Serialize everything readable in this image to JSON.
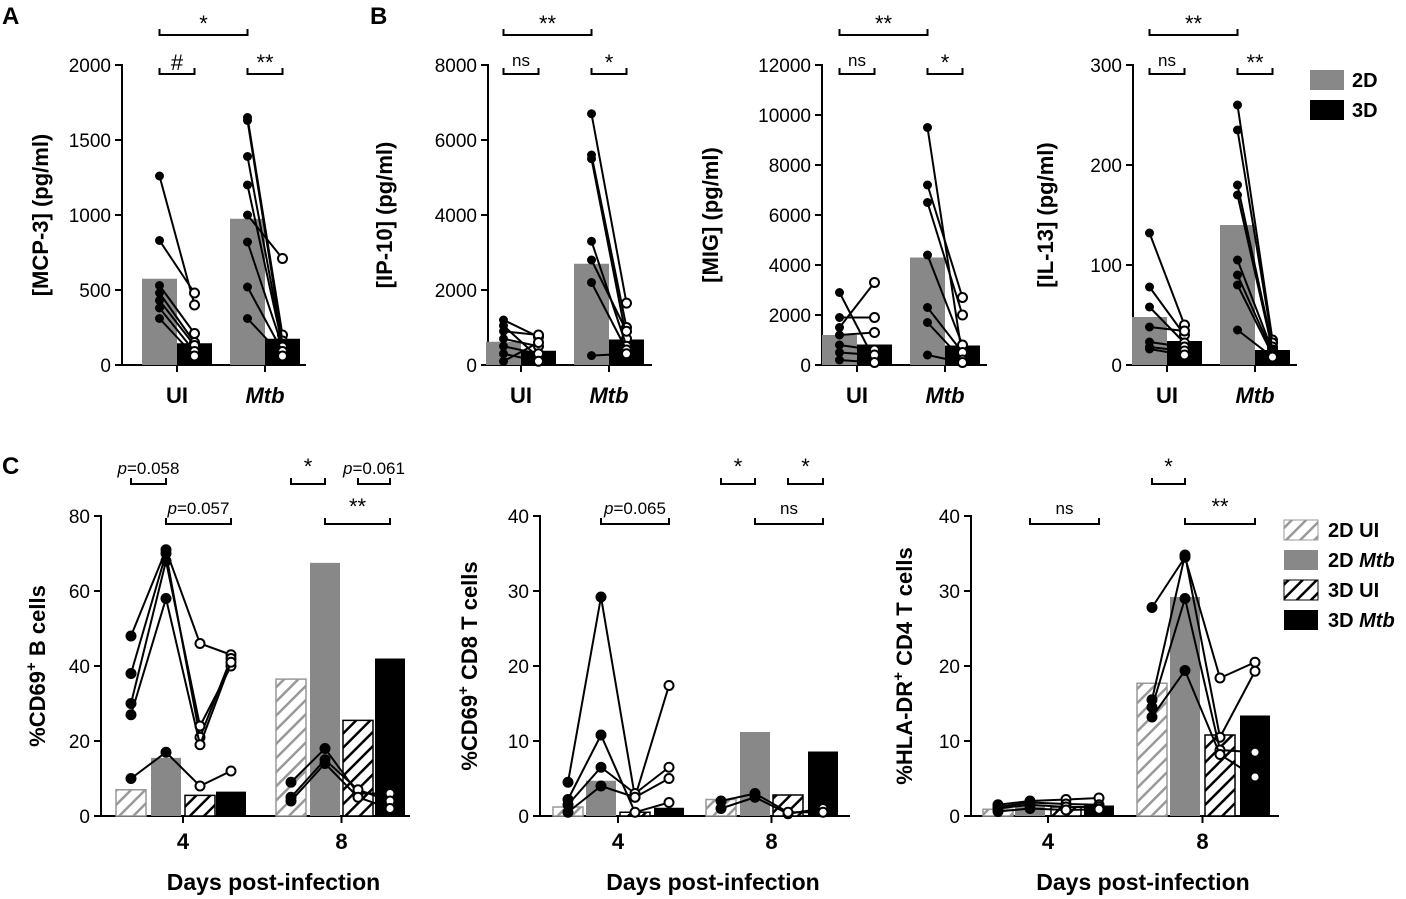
{
  "panel_labels": {
    "a": "A",
    "b": "B",
    "c": "C"
  },
  "colors": {
    "gray": "#888888",
    "black": "#000000",
    "line": "#000000"
  },
  "legend_top": [
    {
      "label": "2D",
      "color": "#888888"
    },
    {
      "label": "3D",
      "color": "#000000"
    }
  ],
  "legend_bottom": [
    {
      "label": "2D UI",
      "style": "hatch-gray"
    },
    {
      "label": "2D ",
      "label_italic": "Mtb",
      "style": "gray"
    },
    {
      "label": "3D UI",
      "style": "hatch-black"
    },
    {
      "label": "3D ",
      "label_italic": "Mtb",
      "style": "black"
    }
  ],
  "chart_data": [
    {
      "id": "mcp3",
      "type": "bar",
      "panel": "A",
      "ylabel": "[MCP-3] (pg/ml)",
      "ylim": [
        0,
        2000
      ],
      "yticks": [
        0,
        500,
        1000,
        1500,
        2000
      ],
      "categories": [
        "UI",
        "Mtb"
      ],
      "categories_italic": [
        false,
        true
      ],
      "series": [
        {
          "name": "2D",
          "values": [
            575,
            975
          ]
        },
        {
          "name": "3D",
          "values": [
            145,
            175
          ]
        }
      ],
      "paired_points": [
        [
          [
            1260,
            400
          ],
          [
            830,
            480
          ],
          [
            530,
            210
          ],
          [
            480,
            150
          ],
          [
            430,
            130
          ],
          [
            380,
            90
          ],
          [
            310,
            60
          ]
        ],
        [
          [
            1650,
            200
          ],
          [
            1630,
            160
          ],
          [
            1390,
            140
          ],
          [
            1200,
            130
          ],
          [
            1000,
            710
          ],
          [
            820,
            120
          ],
          [
            520,
            90
          ],
          [
            310,
            60
          ]
        ]
      ],
      "brackets": [
        {
          "from": [
            0,
            0
          ],
          "to": [
            1,
            0
          ],
          "level": 0,
          "label": "*"
        },
        {
          "from": [
            0,
            0
          ],
          "to": [
            0,
            1
          ],
          "level": 1,
          "label": "#"
        },
        {
          "from": [
            1,
            0
          ],
          "to": [
            1,
            1
          ],
          "level": 1,
          "label": "**"
        }
      ]
    },
    {
      "id": "ip10",
      "type": "bar",
      "panel": "B",
      "ylabel": "[IP-10] (pg/ml)",
      "ylim": [
        0,
        8000
      ],
      "yticks": [
        0,
        2000,
        4000,
        6000,
        8000
      ],
      "categories": [
        "UI",
        "Mtb"
      ],
      "categories_italic": [
        false,
        true
      ],
      "series": [
        {
          "name": "2D",
          "values": [
            620,
            2700
          ]
        },
        {
          "name": "3D",
          "values": [
            380,
            680
          ]
        }
      ],
      "paired_points": [
        [
          [
            1200,
            750
          ],
          [
            1050,
            200
          ],
          [
            900,
            800
          ],
          [
            700,
            500
          ],
          [
            500,
            300
          ],
          [
            300,
            100
          ],
          [
            100,
            600
          ]
        ],
        [
          [
            6700,
            1650
          ],
          [
            5600,
            1000
          ],
          [
            5500,
            700
          ],
          [
            3300,
            500
          ],
          [
            2800,
            900
          ],
          [
            2200,
            400
          ],
          [
            250,
            300
          ]
        ]
      ],
      "brackets": [
        {
          "from": [
            0,
            0
          ],
          "to": [
            1,
            0
          ],
          "level": 0,
          "label": "**"
        },
        {
          "from": [
            0,
            0
          ],
          "to": [
            0,
            1
          ],
          "level": 1,
          "label": "ns"
        },
        {
          "from": [
            1,
            0
          ],
          "to": [
            1,
            1
          ],
          "level": 1,
          "label": "*"
        }
      ]
    },
    {
      "id": "mig",
      "type": "bar",
      "panel": "B",
      "ylabel": "[MIG] (pg/ml)",
      "ylim": [
        0,
        12000
      ],
      "yticks": [
        0,
        2000,
        4000,
        6000,
        8000,
        10000,
        12000
      ],
      "categories": [
        "UI",
        "Mtb"
      ],
      "categories_italic": [
        false,
        true
      ],
      "series": [
        {
          "name": "2D",
          "values": [
            1200,
            4300
          ]
        },
        {
          "name": "3D",
          "values": [
            820,
            780
          ]
        }
      ],
      "paired_points": [
        [
          [
            2900,
            200
          ],
          [
            1900,
            1900
          ],
          [
            1500,
            3300
          ],
          [
            1200,
            1300
          ],
          [
            800,
            600
          ],
          [
            500,
            400
          ],
          [
            200,
            100
          ]
        ],
        [
          [
            9500,
            300
          ],
          [
            7200,
            2700
          ],
          [
            6500,
            2000
          ],
          [
            4400,
            800
          ],
          [
            2300,
            500
          ],
          [
            1700,
            200
          ],
          [
            400,
            100
          ]
        ]
      ],
      "brackets": [
        {
          "from": [
            0,
            0
          ],
          "to": [
            1,
            0
          ],
          "level": 0,
          "label": "**"
        },
        {
          "from": [
            0,
            0
          ],
          "to": [
            0,
            1
          ],
          "level": 1,
          "label": "ns"
        },
        {
          "from": [
            1,
            0
          ],
          "to": [
            1,
            1
          ],
          "level": 1,
          "label": "*"
        }
      ]
    },
    {
      "id": "il13",
      "type": "bar",
      "panel": "B",
      "ylabel": "[IL-13] (pg/ml)",
      "ylim": [
        0,
        300
      ],
      "yticks": [
        0,
        100,
        200,
        300
      ],
      "categories": [
        "UI",
        "Mtb"
      ],
      "categories_italic": [
        false,
        true
      ],
      "series": [
        {
          "name": "2D",
          "values": [
            48,
            140
          ]
        },
        {
          "name": "3D",
          "values": [
            24,
            15
          ]
        }
      ],
      "paired_points": [
        [
          [
            132,
            40
          ],
          [
            78,
            30
          ],
          [
            58,
            22
          ],
          [
            38,
            34
          ],
          [
            23,
            18
          ],
          [
            18,
            14
          ],
          [
            16,
            10
          ]
        ],
        [
          [
            260,
            25
          ],
          [
            235,
            22
          ],
          [
            180,
            18
          ],
          [
            170,
            15
          ],
          [
            105,
            14
          ],
          [
            90,
            12
          ],
          [
            80,
            10
          ],
          [
            35,
            8
          ]
        ]
      ],
      "brackets": [
        {
          "from": [
            0,
            0
          ],
          "to": [
            1,
            0
          ],
          "level": 0,
          "label": "**"
        },
        {
          "from": [
            0,
            0
          ],
          "to": [
            0,
            1
          ],
          "level": 1,
          "label": "ns"
        },
        {
          "from": [
            1,
            0
          ],
          "to": [
            1,
            1
          ],
          "level": 1,
          "label": "**"
        }
      ]
    },
    {
      "id": "cd69b",
      "type": "bar",
      "panel": "C",
      "ylabel_main": "%CD69",
      "ylabel_sup": "+",
      "ylabel_rest": " B cells",
      "ylim": [
        0,
        80
      ],
      "yticks": [
        0,
        20,
        40,
        60,
        80
      ],
      "xlabel": "Days post-infection",
      "categories": [
        "4",
        "8"
      ],
      "series": [
        {
          "name": "2D UI",
          "values": [
            7,
            36.5
          ]
        },
        {
          "name": "2D Mtb",
          "values": [
            15.5,
            67.5
          ]
        },
        {
          "name": "3D UI",
          "values": [
            5.5,
            25.5
          ]
        },
        {
          "name": "3D Mtb",
          "values": [
            6.5,
            42
          ]
        }
      ],
      "donor_lines": [
        [
          [
            10,
            17,
            8,
            12
          ],
          [
            48,
            71,
            46,
            43
          ],
          [
            38,
            70,
            21,
            42
          ],
          [
            30,
            68,
            24,
            40
          ],
          [
            27,
            58,
            19,
            41
          ]
        ],
        [
          [
            9,
            18,
            6,
            6
          ],
          [
            5,
            15,
            7,
            4
          ],
          [
            4,
            14,
            5,
            2
          ]
        ]
      ],
      "brackets": [
        {
          "from": [
            0,
            0
          ],
          "to": [
            0,
            1
          ],
          "level": 1,
          "label": "p=0.058",
          "small": true
        },
        {
          "from": [
            0,
            1
          ],
          "to": [
            0,
            3
          ],
          "level": 0,
          "label": "p=0.057",
          "small": true
        },
        {
          "from": [
            1,
            0
          ],
          "to": [
            1,
            1
          ],
          "level": 1,
          "label": "*"
        },
        {
          "from": [
            1,
            2
          ],
          "to": [
            1,
            3
          ],
          "level": 1,
          "label": "p=0.061",
          "small": true
        },
        {
          "from": [
            1,
            1
          ],
          "to": [
            1,
            3
          ],
          "level": 0,
          "label": "**"
        }
      ]
    },
    {
      "id": "cd69cd8",
      "type": "bar",
      "panel": "C",
      "ylabel_main": "%CD69",
      "ylabel_sup": "+",
      "ylabel_rest": " CD8 T cells",
      "ylim": [
        0,
        40
      ],
      "yticks": [
        0,
        10,
        20,
        30,
        40
      ],
      "xlabel": "Days post-infection",
      "categories": [
        "4",
        "8"
      ],
      "series": [
        {
          "name": "2D UI",
          "values": [
            1.2,
            2.2
          ]
        },
        {
          "name": "2D Mtb",
          "values": [
            4.7,
            11.2
          ]
        },
        {
          "name": "3D UI",
          "values": [
            0.5,
            2.8
          ]
        },
        {
          "name": "3D Mtb",
          "values": [
            1.1,
            8.6
          ]
        }
      ],
      "donor_lines": [
        [
          [
            2.2,
            10.8,
            0.5,
            1.8
          ],
          [
            4.5,
            29.2,
            2.5,
            17.4
          ],
          [
            1.5,
            6.5,
            3,
            6.5
          ],
          [
            0.5,
            4,
            2.5,
            5
          ]
        ],
        [
          [
            1,
            2.5,
            0.3,
            1
          ],
          [
            2,
            3,
            0.5,
            0.5
          ]
        ]
      ],
      "brackets": [
        {
          "from": [
            0,
            1
          ],
          "to": [
            0,
            3
          ],
          "level": 0,
          "label": "p=0.065",
          "small": true
        },
        {
          "from": [
            1,
            0
          ],
          "to": [
            1,
            1
          ],
          "level": 1,
          "label": "*"
        },
        {
          "from": [
            1,
            2
          ],
          "to": [
            1,
            3
          ],
          "level": 1,
          "label": "*"
        },
        {
          "from": [
            1,
            1
          ],
          "to": [
            1,
            3
          ],
          "level": 0,
          "label": "ns",
          "small": true
        }
      ]
    },
    {
      "id": "hladr",
      "type": "bar",
      "panel": "C",
      "ylabel_main": "%HLA-DR",
      "ylabel_sup": "+",
      "ylabel_rest": " CD4 T cells",
      "ylim": [
        0,
        40
      ],
      "yticks": [
        0,
        10,
        20,
        30,
        40
      ],
      "xlabel": "Days post-infection",
      "categories": [
        "4",
        "8"
      ],
      "series": [
        {
          "name": "2D UI",
          "values": [
            0.9,
            17.7
          ]
        },
        {
          "name": "2D Mtb",
          "values": [
            1.3,
            29.2
          ]
        },
        {
          "name": "3D UI",
          "values": [
            1.2,
            10.8
          ]
        },
        {
          "name": "3D Mtb",
          "values": [
            1.4,
            13.4
          ]
        }
      ],
      "donor_lines": [
        [
          [
            1.5,
            2,
            2.2,
            2.4
          ],
          [
            1.2,
            1.8,
            1.6,
            1.5
          ],
          [
            1,
            1.5,
            1.2,
            1.2
          ],
          [
            0.6,
            1,
            0.8,
            0.9
          ]
        ],
        [
          [
            27.8,
            34.5,
            18.4,
            20.5
          ],
          [
            15.5,
            34.8,
            10.5,
            19.3
          ],
          [
            14.5,
            29,
            8.8,
            8.5
          ],
          [
            13.2,
            19.4,
            8.2,
            5.2
          ]
        ]
      ],
      "brackets": [
        {
          "from": [
            0,
            1
          ],
          "to": [
            0,
            3
          ],
          "level": 0,
          "label": "ns",
          "small": true
        },
        {
          "from": [
            1,
            0
          ],
          "to": [
            1,
            1
          ],
          "level": 1,
          "label": "*"
        },
        {
          "from": [
            1,
            1
          ],
          "to": [
            1,
            3
          ],
          "level": 0,
          "label": "**"
        }
      ]
    }
  ]
}
